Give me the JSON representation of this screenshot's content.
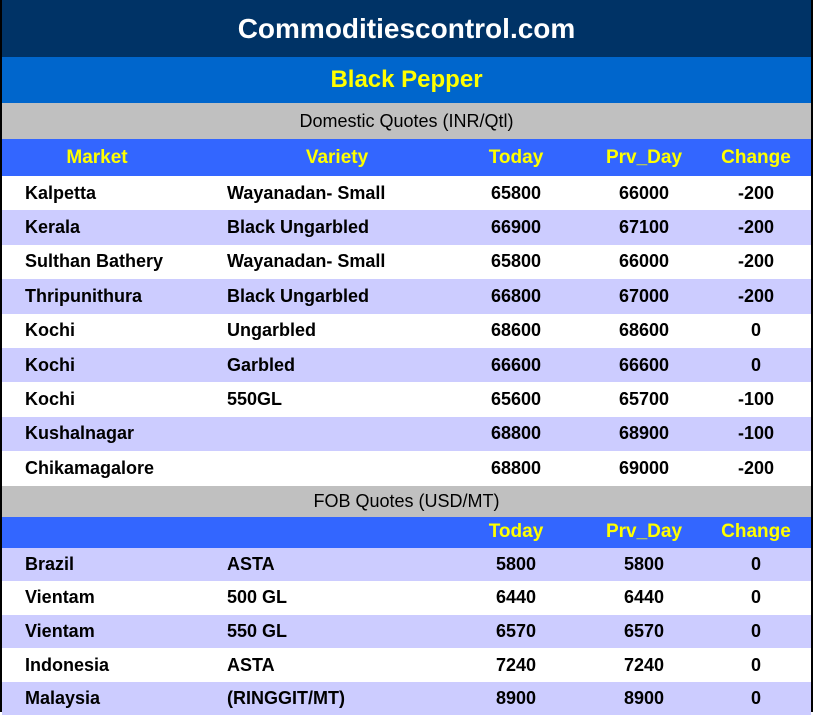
{
  "title": "Commoditiescontrol.com",
  "commodity": "Black Pepper",
  "domestic": {
    "heading": "Domestic Quotes (INR/Qtl)",
    "columns": [
      "Market",
      "Variety",
      "Today",
      "Prv_Day",
      "Change"
    ],
    "rows": [
      [
        "Kalpetta",
        "Wayanadan- Small",
        "65800",
        "66000",
        "-200"
      ],
      [
        "Kerala",
        "Black Ungarbled",
        "66900",
        "67100",
        "-200"
      ],
      [
        "Sulthan Bathery",
        "Wayanadan- Small",
        "65800",
        "66000",
        "-200"
      ],
      [
        "Thripunithura",
        "Black Ungarbled",
        "66800",
        "67000",
        "-200"
      ],
      [
        "Kochi",
        "Ungarbled",
        "68600",
        "68600",
        "0"
      ],
      [
        "Kochi",
        "Garbled",
        "66600",
        "66600",
        "0"
      ],
      [
        "Kochi",
        "550GL",
        "65600",
        "65700",
        "-100"
      ],
      [
        "Kushalnagar",
        "",
        "68800",
        "68900",
        "-100"
      ],
      [
        "Chikamagalore",
        "",
        "68800",
        "69000",
        "-200"
      ]
    ]
  },
  "fob": {
    "heading": "FOB Quotes (USD/MT)",
    "columns": [
      "",
      "",
      "Today",
      "Prv_Day",
      "Change"
    ],
    "rows": [
      [
        "Brazil",
        "ASTA",
        "5800",
        "5800",
        "0"
      ],
      [
        "Vientam",
        "500 GL",
        "6440",
        "6440",
        "0"
      ],
      [
        "Vientam",
        "550 GL",
        "6570",
        "6570",
        "0"
      ],
      [
        "Indonesia",
        "ASTA",
        "7240",
        "7240",
        "0"
      ],
      [
        "Malaysia",
        "(RINGGIT/MT)",
        "8900",
        "8900",
        "0"
      ]
    ]
  },
  "colors": {
    "title_bg": "#003366",
    "sub_bg": "#0066CC",
    "header_bg": "#3366FF",
    "header_text": "#FFFF00",
    "band_bg": "#C0C0C0",
    "alt_row": "#CCCCFF"
  }
}
